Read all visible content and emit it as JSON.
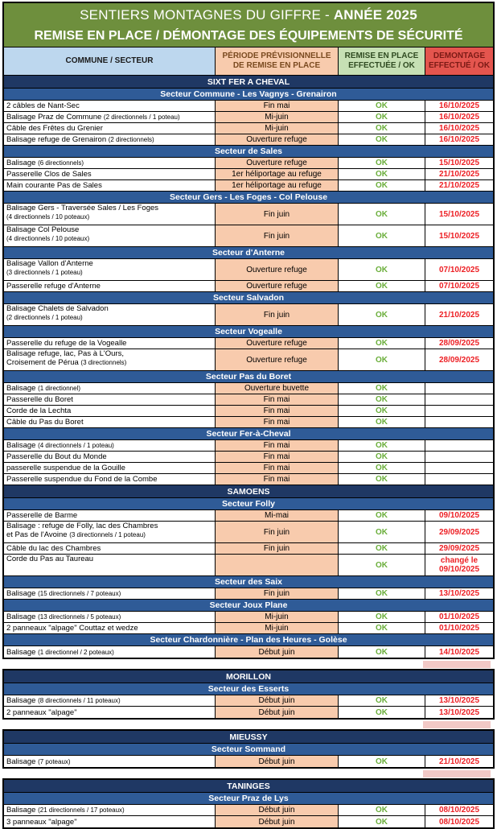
{
  "title": {
    "line1_regular": "SENTIERS MONTAGNES DU GIFFRE - ",
    "line1_bold": "ANNÉE 2025",
    "line2": "REMISE EN PLACE / DÉMONTAGE DES ÉQUIPEMENTS DE SÉCURITÉ"
  },
  "columns": {
    "commune": "COMMUNE / SECTEUR",
    "periode_l1": "PÉRIODE PRÉVISIONNELLE",
    "periode_l2": "DE REMISE EN PLACE",
    "remise_l1": "REMISE EN PLACE",
    "remise_l2": "EFFECTUÉE / OK",
    "demontage_l1": "DEMONTAGE",
    "demontage_l2": "EFFECTUÉ / OK"
  },
  "colors": {
    "title_green": "#6E8F3D",
    "header_blue": "#BDD7EE",
    "header_peach": "#F8CBAD",
    "header_light_green": "#C6E0B4",
    "header_red": "#E4554E",
    "commune_navy": "#1F3864",
    "secteur_blue": "#2F5B97",
    "ok_green": "#6AAE3A",
    "date_red": "#ED1F24",
    "gap_artifact_pink": "#F2C9C6"
  },
  "blocks": [
    {
      "communes": [
        {
          "name": "SIXT FER A CHEVAL",
          "secteurs": [
            {
              "name": "Secteur Commune - Les Vagnys - Grenairon",
              "rows": [
                {
                  "label": "2 câbles de Nant-Sec",
                  "periode": "Fin mai",
                  "remise": "OK",
                  "demontage": "16/10/2025"
                },
                {
                  "label": "Balisage Praz de Commune (2 directionnels / 1 poteau)",
                  "periode": "Mi-juin",
                  "remise": "OK",
                  "demontage": "16/10/2025"
                },
                {
                  "label": "Câble des Frêtes du Grenier",
                  "periode": "Mi-juin",
                  "remise": "OK",
                  "demontage": "16/10/2025"
                },
                {
                  "label": "Balisage refuge de Grenairon (2 directionnels)",
                  "periode": "Ouverture refuge",
                  "remise": "OK",
                  "demontage": "16/10/2025"
                }
              ]
            },
            {
              "name": "Secteur de Sales",
              "rows": [
                {
                  "label": "Balisage (6 directionnels)",
                  "periode": "Ouverture refuge",
                  "remise": "OK",
                  "demontage": "15/10/2025"
                },
                {
                  "label": "Passerelle Clos de Sales",
                  "periode": "1er héliportage au refuge",
                  "remise": "OK",
                  "demontage": "21/10/2025"
                },
                {
                  "label": "Main courante Pas de Sales",
                  "periode": "1er héliportage au refuge",
                  "remise": "OK",
                  "demontage": "21/10/2025"
                }
              ]
            },
            {
              "name": "Secteur Gers - Les Foges - Col Pelouse",
              "rows": [
                {
                  "label": "Balisage Gers - Traversée Sales / Les Foges",
                  "label2": "(4 directionnels / 10 poteaux)",
                  "periode": "Fin juin",
                  "remise": "OK",
                  "demontage": "15/10/2025"
                },
                {
                  "label": "Balisage Col Pelouse",
                  "label2": "(4 directionnels / 10 poteaux)",
                  "periode": "Fin juin",
                  "remise": "OK",
                  "demontage": "15/10/2025"
                }
              ]
            },
            {
              "name": "Secteur d'Anterne",
              "rows": [
                {
                  "label": "Balisage Vallon d'Anterne",
                  "label2": "(3 directionnels / 1 poteau)",
                  "periode": "Ouverture refuge",
                  "remise": "OK",
                  "demontage": "07/10/2025"
                },
                {
                  "label": "Passerelle refuge d'Anterne",
                  "periode": "Ouverture refuge",
                  "remise": "OK",
                  "demontage": "07/10/2025"
                }
              ]
            },
            {
              "name": "Secteur Salvadon",
              "rows": [
                {
                  "label": "Balisage Chalets de Salvadon",
                  "label2": "(2 directionnels / 1 poteau)",
                  "periode": "Fin juin",
                  "remise": "OK",
                  "demontage": "21/10/2025"
                }
              ]
            },
            {
              "name": "Secteur Vogealle",
              "rows": [
                {
                  "label": "Passerelle du refuge de la Vogealle",
                  "periode": "Ouverture refuge",
                  "remise": "OK",
                  "demontage": "28/09/2025"
                },
                {
                  "label": "Balisage refuge, lac, Pas à L'Ours,",
                  "label2": "Croisement de Pérua (3 directionnels)",
                  "periode": "Ouverture refuge",
                  "remise": "OK",
                  "demontage": "28/09/2025"
                }
              ]
            },
            {
              "name": "Secteur Pas du Boret",
              "rows": [
                {
                  "label": "Balisage (1 directionnel)",
                  "periode": "Ouverture buvette",
                  "remise": "OK",
                  "demontage": ""
                },
                {
                  "label": "Passerelle du Boret",
                  "periode": "Fin mai",
                  "remise": "OK",
                  "demontage": ""
                },
                {
                  "label": "Corde de la Lechta",
                  "periode": "Fin mai",
                  "remise": "OK",
                  "demontage": ""
                },
                {
                  "label": "Câble du Pas du Boret",
                  "periode": "Fin mai",
                  "remise": "OK",
                  "demontage": ""
                }
              ]
            },
            {
              "name": "Secteur Fer-à-Cheval",
              "rows": [
                {
                  "label": "Balisage (4 directionnels / 1 poteau)",
                  "periode": "Fin mai",
                  "remise": "OK",
                  "demontage": ""
                },
                {
                  "label": "Passerelle du Bout du Monde",
                  "periode": "Fin mai",
                  "remise": "OK",
                  "demontage": ""
                },
                {
                  "label": "passerelle suspendue de la Gouille",
                  "periode": "Fin mai",
                  "remise": "OK",
                  "demontage": ""
                },
                {
                  "label": "Passerelle suspendue du Fond de la Combe",
                  "periode": "Fin mai",
                  "remise": "OK",
                  "demontage": ""
                }
              ]
            }
          ]
        },
        {
          "name": "SAMOENS",
          "secteurs": [
            {
              "name": "Secteur Folly",
              "rows": [
                {
                  "label": "Passerelle de Barme",
                  "periode": "Mi-mai",
                  "remise": "OK",
                  "demontage": "09/10/2025"
                },
                {
                  "label": "Balisage : refuge de Folly, lac des Chambres",
                  "label2": "et Pas de l'Avoine (3 directionnels / 1 poteau)",
                  "periode": "Fin juin",
                  "remise": "OK",
                  "demontage": "29/09/2025"
                },
                {
                  "label": "Câble du lac des Chambres",
                  "periode": "Fin juin",
                  "remise": "OK",
                  "demontage": "29/09/2025"
                },
                {
                  "label": "Corde du Pas au Taureau",
                  "periode": "",
                  "remise": "OK",
                  "demontage": "changé le 09/10/2025",
                  "tall": true
                }
              ]
            },
            {
              "name": "Secteur des Saix",
              "rows": [
                {
                  "label": "Balisage (15 directionnels / 7 poteaux)",
                  "periode": "Fin juin",
                  "remise": "OK",
                  "demontage": "13/10/2025"
                }
              ]
            },
            {
              "name": "Secteur Joux Plane",
              "rows": [
                {
                  "label": "Balisage (13 directionnels / 5 poteaux)",
                  "periode": "Mi-juin",
                  "remise": "OK",
                  "demontage": "01/10/2025"
                },
                {
                  "label": "2 panneaux \"alpage\" Couttaz et wedze",
                  "periode": "Mi-juin",
                  "remise": "OK",
                  "demontage": "01/10/2025"
                }
              ]
            },
            {
              "name": "Secteur Chardonnière - Plan des Heures - Golèse",
              "rows": [
                {
                  "label": "Balisage (1 directionnel / 2 poteaux)",
                  "periode": "Début juin",
                  "remise": "OK",
                  "demontage": "14/10/2025"
                }
              ]
            }
          ]
        }
      ]
    },
    {
      "communes": [
        {
          "name": "MORILLON",
          "secteurs": [
            {
              "name": "Secteur des Esserts",
              "rows": [
                {
                  "label": "Balisage (8 directionnels / 11 poteaux)",
                  "periode": "Début juin",
                  "remise": "OK",
                  "demontage": "13/10/2025"
                },
                {
                  "label": "2 panneaux \"alpage\"",
                  "periode": "Début juin",
                  "remise": "OK",
                  "demontage": "13/10/2025"
                }
              ]
            }
          ]
        }
      ]
    },
    {
      "communes": [
        {
          "name": "MIEUSSY",
          "secteurs": [
            {
              "name": "Secteur Sommand",
              "rows": [
                {
                  "label": "Balisage (7 poteaux)",
                  "periode": "Début juin",
                  "remise": "OK",
                  "demontage": "21/10/2025"
                }
              ]
            }
          ]
        }
      ]
    },
    {
      "communes": [
        {
          "name": "TANINGES",
          "secteurs": [
            {
              "name": "Secteur Praz de Lys",
              "rows": [
                {
                  "label": "Balisage (21 directionnels / 17 poteaux)",
                  "periode": "Début juin",
                  "remise": "OK",
                  "demontage": "08/10/2025"
                },
                {
                  "label": "3 panneaux \"alpage\"",
                  "periode": "Début juin",
                  "remise": "OK",
                  "demontage": "08/10/2025"
                }
              ]
            }
          ]
        }
      ]
    }
  ]
}
